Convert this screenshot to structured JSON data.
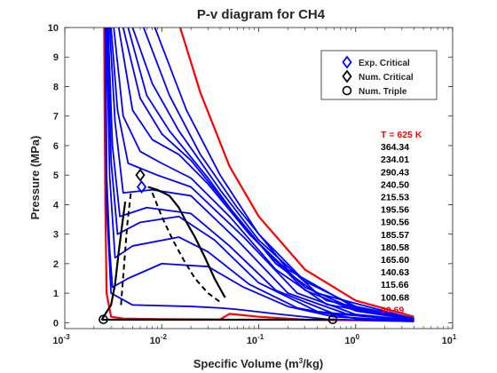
{
  "chart_data": {
    "type": "line",
    "title": "P-v diagram for CH4",
    "xlabel": "Specific Volume (m3/kg)",
    "xlabel_parts": {
      "before": "Specific Volume (m",
      "sup": "3",
      "after": "/kg)"
    },
    "ylabel": "Pressure (MPa)",
    "x_scale": "log",
    "xlim": [
      0.001,
      10
    ],
    "ylim": [
      -0.2,
      10
    ],
    "x_ticks": [
      {
        "base": "10",
        "exp": "-3",
        "value": 0.001
      },
      {
        "base": "10",
        "exp": "-2",
        "value": 0.01
      },
      {
        "base": "10",
        "exp": "-1",
        "value": 0.1
      },
      {
        "base": "10",
        "exp": "0",
        "value": 1
      },
      {
        "base": "10",
        "exp": "1",
        "value": 10
      }
    ],
    "y_ticks": [
      "0",
      "1",
      "2",
      "3",
      "4",
      "5",
      "6",
      "7",
      "8",
      "9",
      "10"
    ],
    "grid": false,
    "colors": {
      "isotherm": "#0000ff",
      "bound_isotherm": "#ff0000",
      "dome": "#000000",
      "axis": "#262626"
    },
    "legend": {
      "position": "top-right",
      "entries": [
        {
          "label": "Exp. Critical",
          "marker": "diamond",
          "color": "#0000ff"
        },
        {
          "label": "Num. Critical",
          "marker": "diamond",
          "color": "#000000"
        },
        {
          "label": "Num. Triple",
          "marker": "circle",
          "color": "#000000"
        }
      ]
    },
    "isotherm_labels": [
      {
        "text": "T = 625 K",
        "color": "#ff0000"
      },
      {
        "text": "364.34",
        "color": "#000000"
      },
      {
        "text": "234.01",
        "color": "#000000"
      },
      {
        "text": "290.43",
        "color": "#000000"
      },
      {
        "text": "240.50",
        "color": "#000000"
      },
      {
        "text": "215.53",
        "color": "#000000"
      },
      {
        "text": "195.56",
        "color": "#000000"
      },
      {
        "text": "190.56",
        "color": "#000000"
      },
      {
        "text": "185.57",
        "color": "#000000"
      },
      {
        "text": "180.58",
        "color": "#000000"
      },
      {
        "text": "165.60",
        "color": "#000000"
      },
      {
        "text": "140.63",
        "color": "#000000"
      },
      {
        "text": "115.66",
        "color": "#000000"
      },
      {
        "text": "100.68",
        "color": "#000000"
      },
      {
        "text": "90.69",
        "color": "#ff0000"
      }
    ],
    "series": [
      {
        "color": "#ff0000",
        "width": 2.2,
        "points": [
          [
            0.00255,
            10
          ],
          [
            0.00258,
            7
          ],
          [
            0.00262,
            4
          ],
          [
            0.0027,
            1
          ],
          [
            0.003,
            0.2
          ],
          [
            0.004,
            0.14
          ],
          [
            0.01,
            0.12
          ],
          [
            0.04,
            0.11
          ],
          [
            0.05,
            0.3
          ],
          [
            0.1,
            0.2
          ],
          [
            0.3,
            0.1
          ],
          [
            1,
            0.08
          ],
          [
            4,
            0.05
          ]
        ]
      },
      {
        "color": "#0000ff",
        "width": 1.8,
        "points": [
          [
            0.00262,
            10
          ],
          [
            0.0027,
            4
          ],
          [
            0.003,
            1
          ],
          [
            0.005,
            0.6
          ],
          [
            0.02,
            0.55
          ],
          [
            0.04,
            0.5
          ],
          [
            0.06,
            0.45
          ],
          [
            0.15,
            0.3
          ],
          [
            0.5,
            0.12
          ],
          [
            4,
            0.04
          ]
        ]
      },
      {
        "color": "#0000ff",
        "width": 1.8,
        "points": [
          [
            0.00265,
            10
          ],
          [
            0.0027,
            5
          ],
          [
            0.0029,
            2.5
          ],
          [
            0.0031,
            1.2
          ],
          [
            0.0045,
            1.5
          ],
          [
            0.01,
            2.0
          ],
          [
            0.03,
            1.9
          ],
          [
            0.07,
            1.2
          ],
          [
            0.2,
            0.55
          ],
          [
            0.6,
            0.2
          ],
          [
            4,
            0.05
          ]
        ]
      },
      {
        "color": "#0000ff",
        "width": 1.8,
        "points": [
          [
            0.0027,
            10
          ],
          [
            0.0029,
            5
          ],
          [
            0.0033,
            2.2
          ],
          [
            0.005,
            2.6
          ],
          [
            0.015,
            2.9
          ],
          [
            0.03,
            2.4
          ],
          [
            0.08,
            1.3
          ],
          [
            0.25,
            0.5
          ],
          [
            1,
            0.14
          ],
          [
            4,
            0.06
          ]
        ]
      },
      {
        "color": "#0000ff",
        "width": 1.8,
        "points": [
          [
            0.00275,
            10
          ],
          [
            0.003,
            5.5
          ],
          [
            0.0035,
            3.0
          ],
          [
            0.006,
            3.4
          ],
          [
            0.015,
            3.6
          ],
          [
            0.035,
            2.8
          ],
          [
            0.1,
            1.35
          ],
          [
            0.4,
            0.38
          ],
          [
            4,
            0.06
          ]
        ]
      },
      {
        "color": "#0000ff",
        "width": 1.8,
        "points": [
          [
            0.0028,
            10
          ],
          [
            0.0031,
            6
          ],
          [
            0.0037,
            3.6
          ],
          [
            0.007,
            3.9
          ],
          [
            0.02,
            3.7
          ],
          [
            0.05,
            2.6
          ],
          [
            0.15,
            1.1
          ],
          [
            0.6,
            0.3
          ],
          [
            4,
            0.07
          ]
        ]
      },
      {
        "color": "#0000ff",
        "width": 1.8,
        "points": [
          [
            0.0029,
            10
          ],
          [
            0.0033,
            6.8
          ],
          [
            0.004,
            4.4
          ],
          [
            0.008,
            4.5
          ],
          [
            0.02,
            4.3
          ],
          [
            0.06,
            2.8
          ],
          [
            0.2,
            1.0
          ],
          [
            0.8,
            0.3
          ],
          [
            4,
            0.07
          ]
        ]
      },
      {
        "color": "#0000ff",
        "width": 1.8,
        "points": [
          [
            0.003,
            10
          ],
          [
            0.0035,
            7.2
          ],
          [
            0.0045,
            5.4
          ],
          [
            0.009,
            5.0
          ],
          [
            0.02,
            4.6
          ],
          [
            0.07,
            2.9
          ],
          [
            0.25,
            1.0
          ],
          [
            1,
            0.28
          ],
          [
            4,
            0.08
          ]
        ]
      },
      {
        "color": "#0000ff",
        "width": 1.8,
        "points": [
          [
            0.0032,
            10
          ],
          [
            0.004,
            7.0
          ],
          [
            0.006,
            5.8
          ],
          [
            0.01,
            5.4
          ],
          [
            0.02,
            4.9
          ],
          [
            0.05,
            3.6
          ],
          [
            0.15,
            1.8
          ],
          [
            0.5,
            0.62
          ],
          [
            4,
            0.09
          ]
        ]
      },
      {
        "color": "#0000ff",
        "width": 1.8,
        "points": [
          [
            0.0036,
            10
          ],
          [
            0.005,
            7.2
          ],
          [
            0.008,
            6.2
          ],
          [
            0.015,
            5.7
          ],
          [
            0.03,
            4.7
          ],
          [
            0.08,
            3.0
          ],
          [
            0.3,
            1.1
          ],
          [
            1,
            0.4
          ],
          [
            4,
            0.1
          ]
        ]
      },
      {
        "color": "#0000ff",
        "width": 1.8,
        "points": [
          [
            0.004,
            10
          ],
          [
            0.006,
            7.6
          ],
          [
            0.01,
            6.4
          ],
          [
            0.02,
            5.5
          ],
          [
            0.05,
            3.9
          ],
          [
            0.15,
            2.0
          ],
          [
            0.5,
            0.75
          ],
          [
            4,
            0.11
          ]
        ]
      },
      {
        "color": "#0000ff",
        "width": 1.8,
        "points": [
          [
            0.0045,
            10
          ],
          [
            0.007,
            7.7
          ],
          [
            0.012,
            6.5
          ],
          [
            0.03,
            4.9
          ],
          [
            0.08,
            3.0
          ],
          [
            0.3,
            1.2
          ],
          [
            1,
            0.45
          ],
          [
            4,
            0.12
          ]
        ]
      },
      {
        "color": "#0000ff",
        "width": 1.8,
        "points": [
          [
            0.005,
            10
          ],
          [
            0.008,
            8.1
          ],
          [
            0.015,
            6.5
          ],
          [
            0.04,
            4.5
          ],
          [
            0.1,
            2.8
          ],
          [
            0.4,
            1.0
          ],
          [
            4,
            0.13
          ]
        ]
      },
      {
        "color": "#0000ff",
        "width": 1.8,
        "points": [
          [
            0.0065,
            10
          ],
          [
            0.012,
            7.7
          ],
          [
            0.025,
            5.7
          ],
          [
            0.06,
            3.9
          ],
          [
            0.2,
            1.8
          ],
          [
            1,
            0.5
          ],
          [
            4,
            0.14
          ]
        ]
      },
      {
        "color": "#0000ff",
        "width": 1.8,
        "points": [
          [
            0.0085,
            10
          ],
          [
            0.018,
            7.2
          ],
          [
            0.04,
            5.0
          ],
          [
            0.1,
            3.0
          ],
          [
            0.3,
            1.4
          ],
          [
            1,
            0.55
          ],
          [
            4,
            0.15
          ]
        ]
      },
      {
        "color": "#ff0000",
        "width": 2.2,
        "points": [
          [
            0.0155,
            10
          ],
          [
            0.025,
            7.8
          ],
          [
            0.05,
            5.3
          ],
          [
            0.1,
            3.6
          ],
          [
            0.3,
            1.8
          ],
          [
            1,
            0.75
          ],
          [
            4,
            0.2
          ]
        ]
      },
      {
        "color": "#000000",
        "width": 2.2,
        "points": [
          [
            0.0024,
            0.1
          ],
          [
            0.003,
            0.6
          ],
          [
            0.0033,
            1.3
          ],
          [
            0.0036,
            2.4
          ],
          [
            0.0039,
            3.3
          ],
          [
            0.0042,
            4.1
          ]
        ]
      },
      {
        "color": "#000000",
        "width": 2.2,
        "points": [
          [
            0.0072,
            4.6
          ],
          [
            0.009,
            4.5
          ],
          [
            0.012,
            4.3
          ],
          [
            0.015,
            3.9
          ],
          [
            0.018,
            3.4
          ],
          [
            0.022,
            2.9
          ],
          [
            0.028,
            2.2
          ],
          [
            0.035,
            1.5
          ],
          [
            0.045,
            0.85
          ]
        ]
      },
      {
        "color": "#000000",
        "width": 2.2,
        "points": [
          [
            0.0024,
            0.1
          ],
          [
            0.6,
            0.1
          ]
        ]
      },
      {
        "color": "#000000",
        "width": 2.0,
        "dash": "6,4",
        "points": [
          [
            0.0038,
            0.6
          ],
          [
            0.0041,
            2.0
          ],
          [
            0.0044,
            3.3
          ],
          [
            0.0048,
            4.4
          ]
        ]
      },
      {
        "color": "#000000",
        "width": 2.0,
        "dash": "6,4",
        "points": [
          [
            0.008,
            4.4
          ],
          [
            0.01,
            3.6
          ],
          [
            0.013,
            2.8
          ],
          [
            0.017,
            2.1
          ],
          [
            0.022,
            1.5
          ],
          [
            0.03,
            1.0
          ],
          [
            0.04,
            0.7
          ]
        ]
      }
    ],
    "markers": [
      {
        "kind": "diamond",
        "color": "#0000ff",
        "x": 0.0062,
        "y": 4.6
      },
      {
        "kind": "diamond",
        "color": "#000000",
        "x": 0.006,
        "y": 5.0
      },
      {
        "kind": "circle",
        "color": "#000000",
        "x": 0.0025,
        "y": 0.11
      },
      {
        "kind": "circle",
        "color": "#000000",
        "x": 0.58,
        "y": 0.11
      }
    ]
  }
}
